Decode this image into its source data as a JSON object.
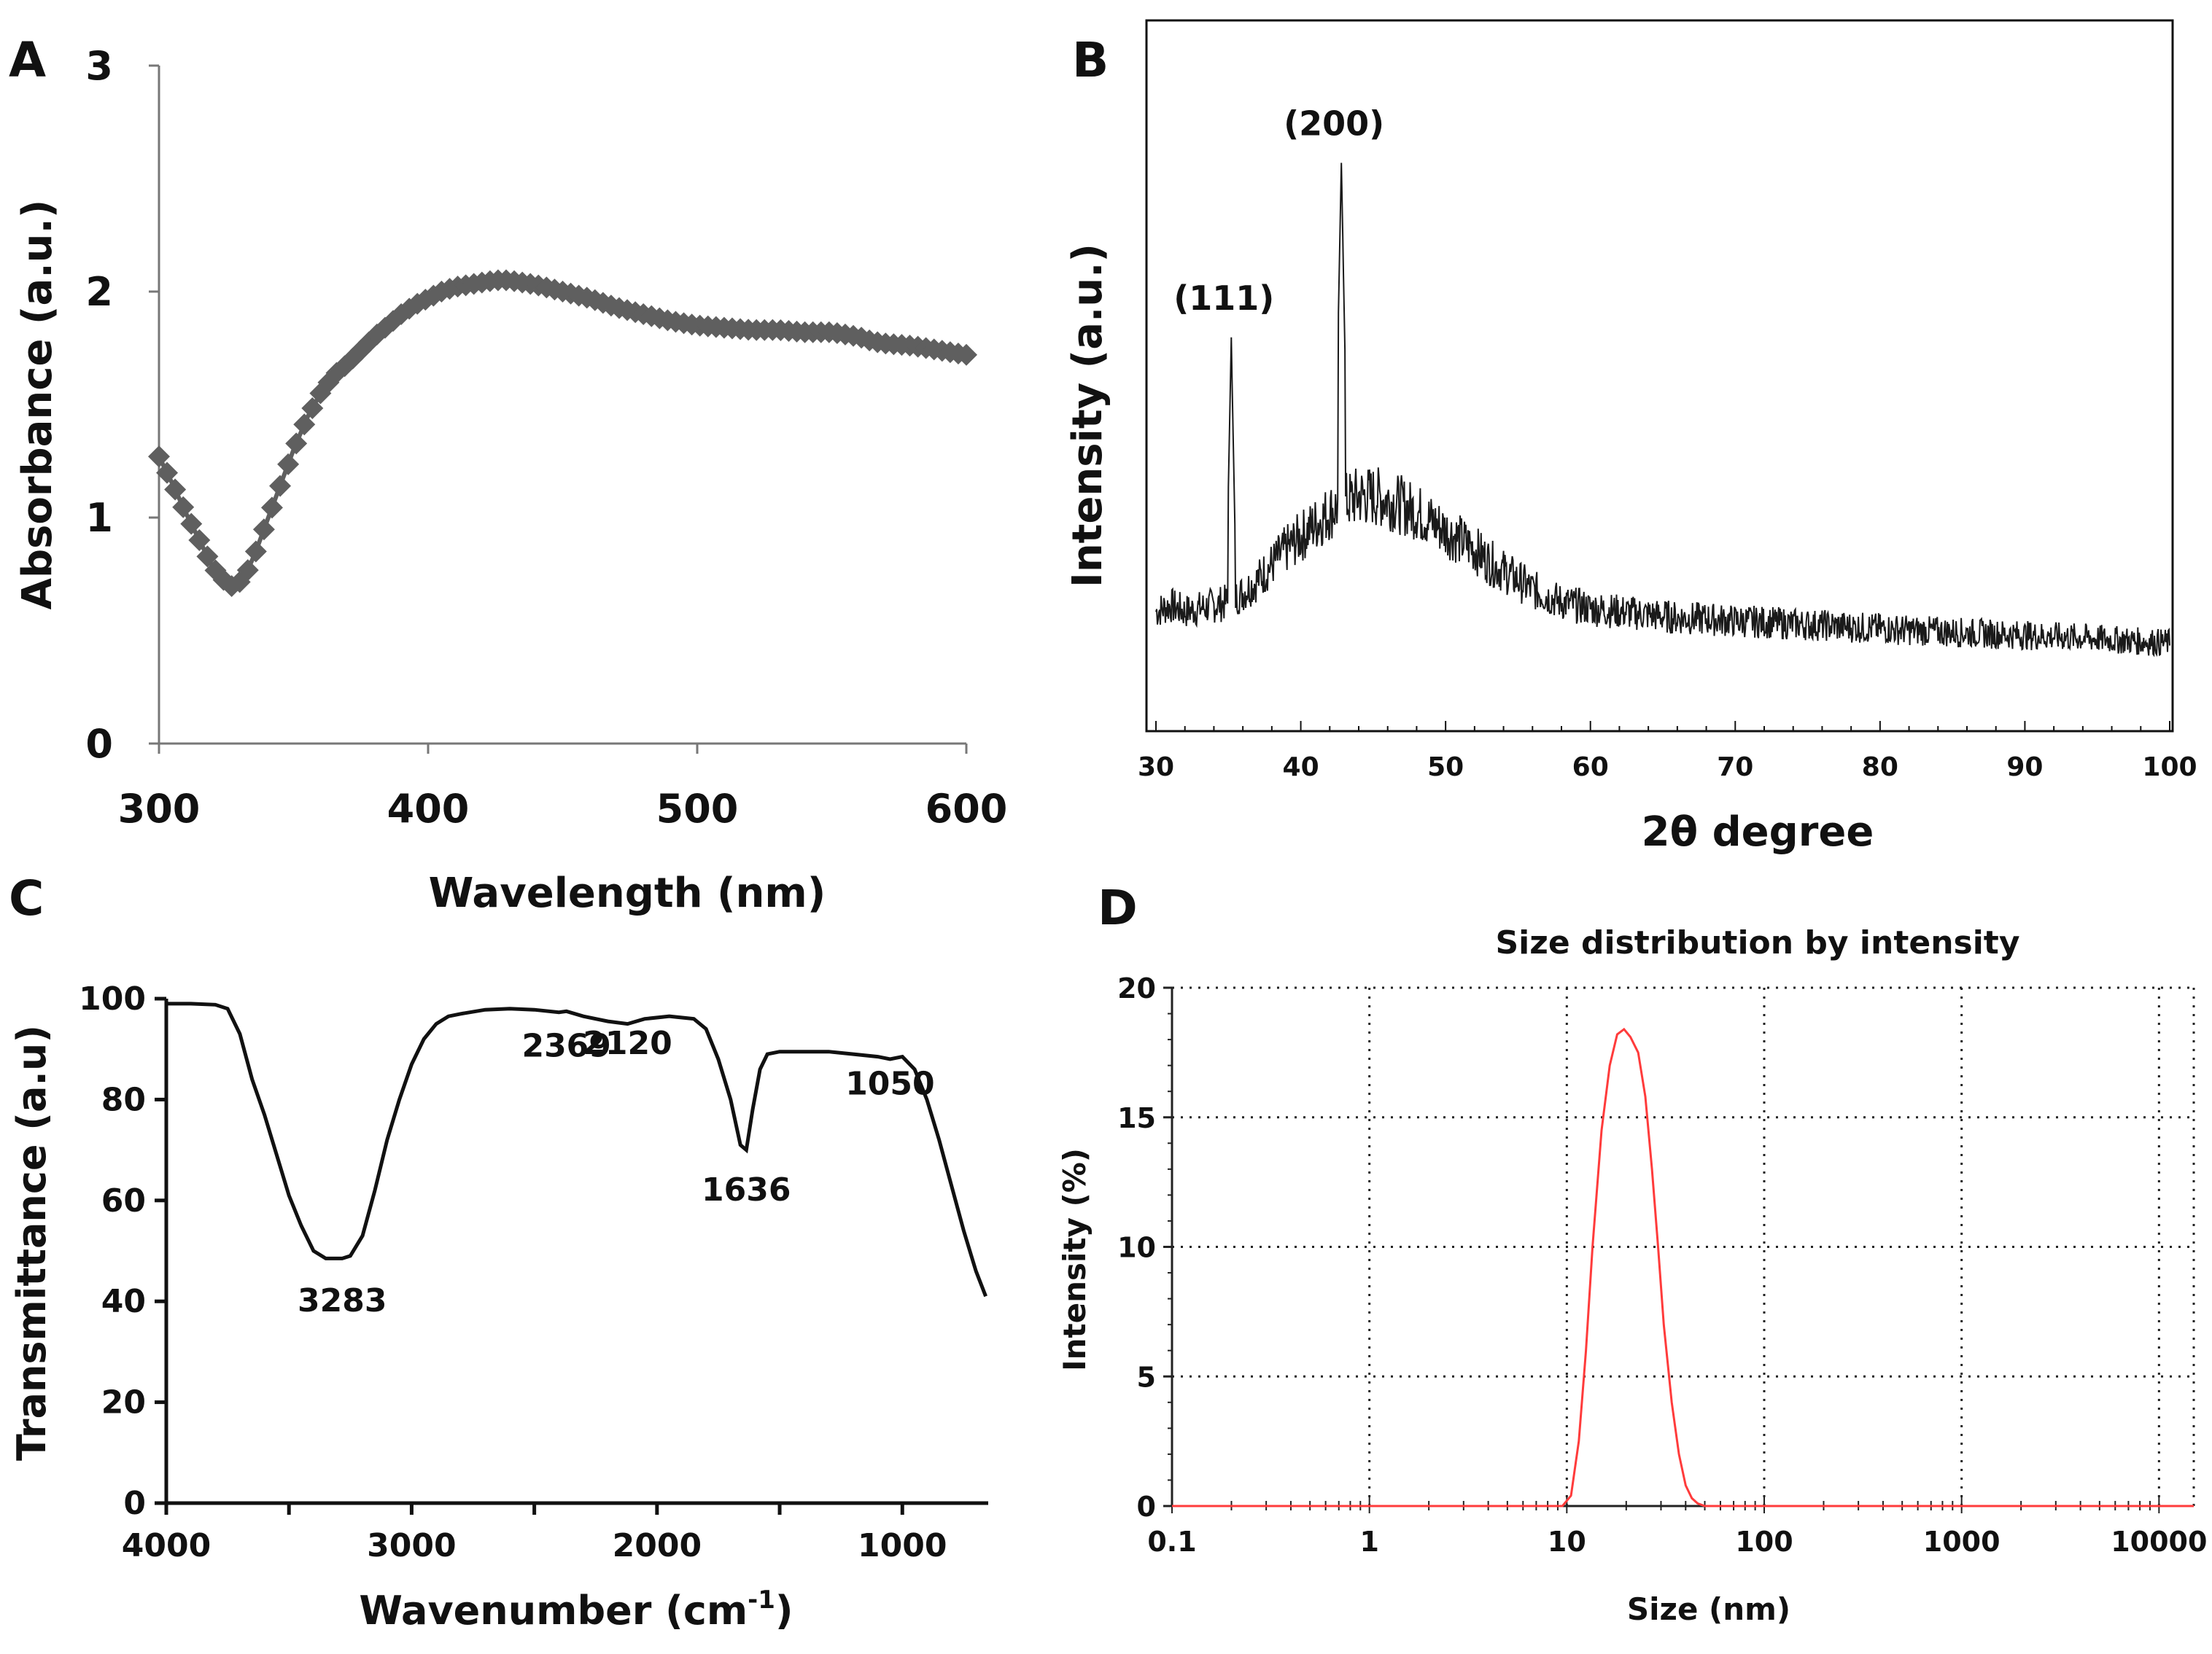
{
  "figure": {
    "panels": [
      {
        "letter": "A"
      },
      {
        "letter": "B"
      },
      {
        "letter": "C"
      },
      {
        "letter": "D"
      }
    ]
  },
  "chart_data": [
    {
      "panel": "A",
      "type": "line",
      "title": "",
      "xlabel": "Wavelength (nm)",
      "ylabel": "Absorbance (a.u.)",
      "xlim": [
        300,
        600
      ],
      "ylim": [
        0,
        3
      ],
      "xticks": [
        "300",
        "400",
        "500",
        "600"
      ],
      "yticks": [
        "0",
        "1",
        "2",
        "3"
      ],
      "marker": "diamond",
      "color": "#5f5f5f",
      "series": [
        {
          "x": [
            300,
            305,
            310,
            315,
            320,
            325,
            328,
            332,
            336,
            340,
            345,
            350,
            355,
            360,
            365,
            370,
            375,
            380,
            385,
            390,
            395,
            400,
            405,
            410,
            415,
            420,
            425,
            430,
            435,
            440,
            450,
            460,
            470,
            480,
            490,
            500,
            510,
            520,
            530,
            540,
            550,
            555,
            560,
            565,
            570,
            580,
            590,
            600
          ],
          "y": [
            1.27,
            1.15,
            1.02,
            0.9,
            0.78,
            0.71,
            0.69,
            0.74,
            0.85,
            0.98,
            1.14,
            1.3,
            1.44,
            1.55,
            1.63,
            1.68,
            1.74,
            1.8,
            1.85,
            1.9,
            1.94,
            1.97,
            2.0,
            2.02,
            2.03,
            2.04,
            2.05,
            2.05,
            2.04,
            2.03,
            2.0,
            1.97,
            1.93,
            1.9,
            1.87,
            1.85,
            1.84,
            1.83,
            1.83,
            1.82,
            1.82,
            1.81,
            1.8,
            1.78,
            1.77,
            1.76,
            1.74,
            1.72
          ]
        }
      ]
    },
    {
      "panel": "B",
      "type": "line",
      "title": "",
      "xlabel": "2θ degree",
      "ylabel": "Intensity (a.u.)",
      "xlim": [
        30,
        100
      ],
      "ylim": [
        0,
        100
      ],
      "xticks": [
        "30",
        "40",
        "50",
        "60",
        "70",
        "80",
        "90",
        "100"
      ],
      "y_tick_labels": false,
      "color": "#111111",
      "series": [
        {
          "x": [
            30,
            31,
            32,
            33,
            34,
            35,
            36,
            37,
            38,
            39,
            40,
            41,
            42,
            43,
            44,
            45,
            46,
            47,
            48,
            49,
            50,
            51,
            52,
            53,
            54,
            55,
            56,
            57,
            58,
            60,
            62,
            64,
            66,
            68,
            70,
            72,
            74,
            76,
            78,
            80,
            82,
            84,
            86,
            88,
            90,
            92,
            94,
            96,
            98,
            100
          ],
          "y": [
            11,
            12,
            11,
            11.5,
            12,
            12.5,
            14,
            16,
            18.5,
            21,
            23,
            25,
            27,
            28.5,
            29.5,
            29.5,
            29,
            28,
            27,
            25.5,
            24,
            22.5,
            21,
            19,
            17.5,
            16,
            14.5,
            13.5,
            12.5,
            11.5,
            11,
            10.5,
            10,
            9.8,
            9.5,
            9.3,
            9.0,
            8.8,
            8.5,
            8.3,
            8.0,
            7.8,
            7.6,
            7.4,
            7.2,
            7.0,
            6.8,
            6.5,
            6.2,
            6.0
          ]
        }
      ],
      "peaks": [
        {
          "label": "(111)",
          "x": 35.2,
          "y": 55
        },
        {
          "label": "(200)",
          "x": 42.8,
          "y": 83
        }
      ]
    },
    {
      "panel": "C",
      "type": "line",
      "title": "",
      "xlabel_main": "Wavenumber (cm",
      "xlabel_sup": "-1",
      "xlabel_end": ")",
      "ylabel": "Transmittance (a.u)",
      "xlim": [
        4000,
        650
      ],
      "ylim": [
        0,
        100
      ],
      "xticks": [
        "4000",
        "3000",
        "2000",
        "1000"
      ],
      "yticks": [
        "0",
        "20",
        "40",
        "60",
        "80",
        "100"
      ],
      "color": "#111111",
      "series": [
        {
          "x": [
            4000,
            3900,
            3800,
            3750,
            3700,
            3650,
            3600,
            3550,
            3500,
            3450,
            3400,
            3350,
            3300,
            3283,
            3250,
            3200,
            3150,
            3100,
            3050,
            3000,
            2950,
            2900,
            2850,
            2800,
            2700,
            2600,
            2500,
            2400,
            2369,
            2300,
            2200,
            2120,
            2050,
            1950,
            1850,
            1800,
            1750,
            1700,
            1660,
            1636,
            1610,
            1580,
            1550,
            1500,
            1400,
            1300,
            1200,
            1100,
            1050,
            1000,
            950,
            900,
            850,
            800,
            750,
            700,
            660
          ],
          "y": [
            99,
            99,
            98.8,
            98,
            93,
            84,
            77,
            69,
            61,
            55,
            50,
            48.5,
            48.5,
            48.5,
            49,
            53,
            62,
            72,
            80,
            87,
            92,
            95,
            96.5,
            97,
            97.8,
            98,
            97.8,
            97.3,
            97.5,
            96.5,
            95.5,
            95,
            96,
            96.5,
            96,
            94,
            88,
            80,
            71,
            70,
            78,
            86,
            89,
            89.5,
            89.5,
            89.5,
            89,
            88.5,
            88,
            88.5,
            86,
            80,
            72,
            63,
            54,
            46,
            41
          ]
        }
      ],
      "annotations": [
        "3283",
        "2369",
        "2120",
        "1636",
        "1050"
      ]
    },
    {
      "panel": "D",
      "type": "line",
      "title": "Size distribution by intensity",
      "xlabel": "Size (nm)",
      "ylabel": "Intensity (%)",
      "xscale": "log",
      "xlim": [
        0.1,
        15000
      ],
      "ylim": [
        0,
        20
      ],
      "xticks": [
        "0.1",
        "1",
        "10",
        "100",
        "1000",
        "10000"
      ],
      "yticks": [
        "0",
        "5",
        "10",
        "15",
        "20"
      ],
      "grid": true,
      "color": "#ff3b3b",
      "series": [
        {
          "x": [
            0.1,
            5,
            9.5,
            10.5,
            11.5,
            12.5,
            13.5,
            15,
            16.5,
            18,
            19.5,
            21,
            23,
            25,
            27,
            29,
            31,
            34,
            37,
            40,
            43,
            46,
            50,
            60,
            100,
            1000,
            15000
          ],
          "y": [
            0,
            0,
            0,
            0.4,
            2.5,
            6.0,
            10.0,
            14.5,
            17.0,
            18.2,
            18.4,
            18.1,
            17.5,
            15.8,
            13.0,
            10.0,
            7.0,
            4.0,
            2.0,
            0.8,
            0.3,
            0.1,
            0,
            0,
            0,
            0,
            0
          ]
        }
      ]
    }
  ]
}
